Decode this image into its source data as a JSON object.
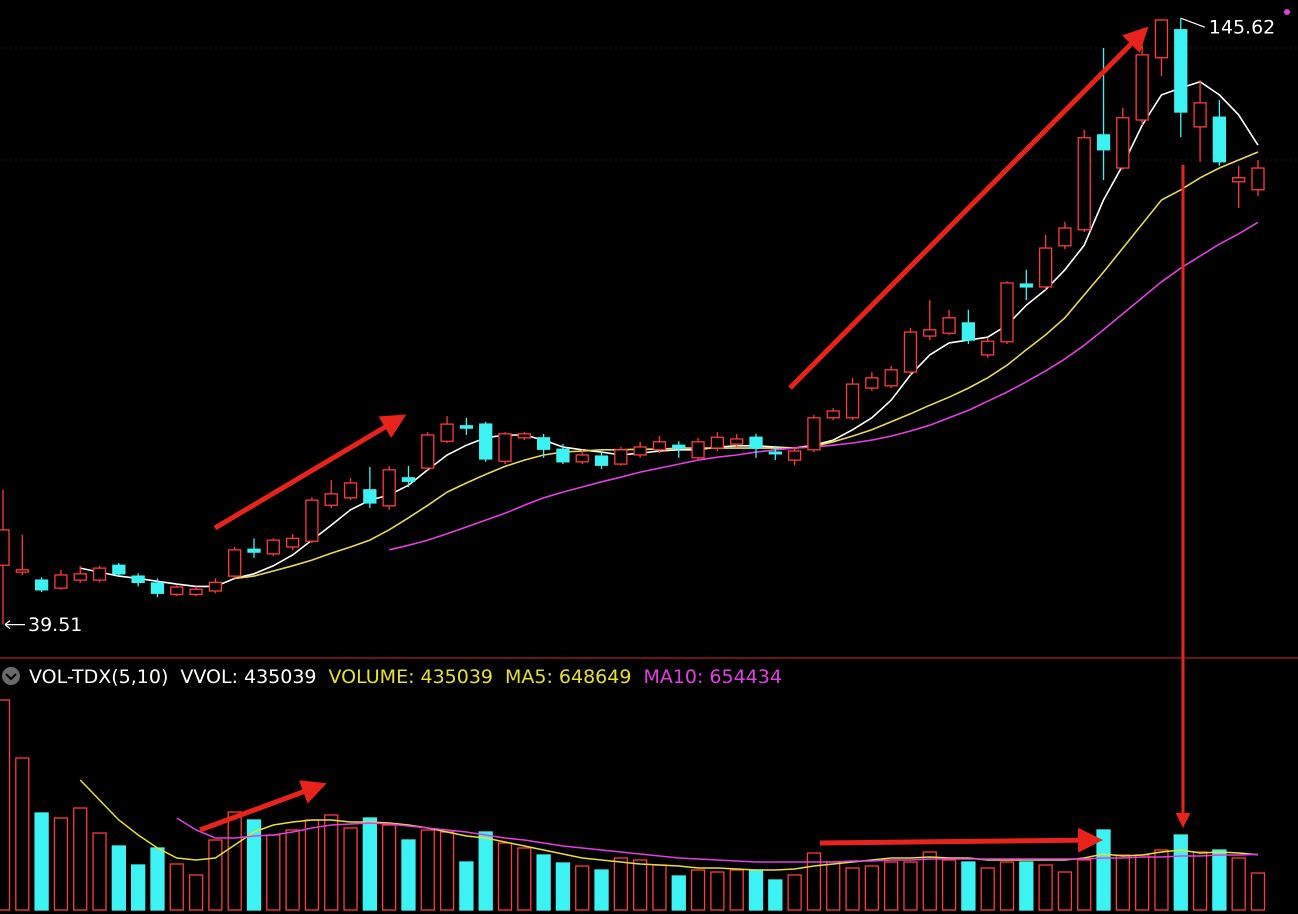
{
  "chart_data": [
    {
      "type": "candlestick",
      "open": [
        49.9,
        48.7,
        47.3,
        45.9,
        47.3,
        47.3,
        49.9,
        48.0,
        46.8,
        44.8,
        44.8,
        45.4,
        48.0,
        52.7,
        51.9,
        53.1,
        54.1,
        60.4,
        61.7,
        63.1,
        60.3,
        65.2,
        66.9,
        71.6,
        74.3,
        74.6,
        68.1,
        72.2,
        72.2,
        70.2,
        68.0,
        69.0,
        67.6,
        69.2,
        70.1,
        70.9,
        68.7,
        70.4,
        71.1,
        72.3,
        69.7,
        68.3,
        70.1,
        75.7,
        75.7,
        80.9,
        81.3,
        83.7,
        90.0,
        90.5,
        92.3,
        86.7,
        89.0,
        99.1,
        98.6,
        105.8,
        108.6,
        125.2,
        119.4,
        127.8,
        138.7,
        143.6,
        126.6,
        128.3,
        117.0,
        115.6
      ],
      "high": [
        63.1,
        55.2,
        47.8,
        49.1,
        49.8,
        49.8,
        50.3,
        48.5,
        47.6,
        46.4,
        46.2,
        47.6,
        53.1,
        54.6,
        54.6,
        55.4,
        61.8,
        64.8,
        65.2,
        67.1,
        67.3,
        67.3,
        73.2,
        76.0,
        75.7,
        75.0,
        73.2,
        73.2,
        72.9,
        71.1,
        70.1,
        69.7,
        70.6,
        71.5,
        72.5,
        71.6,
        72.2,
        73.2,
        72.9,
        72.9,
        70.8,
        70.6,
        76.2,
        77.4,
        82.7,
        83.7,
        84.8,
        91.4,
        96.3,
        94.6,
        94.6,
        89.7,
        99.6,
        101.6,
        107.7,
        110.0,
        126.1,
        140.4,
        129.9,
        140.9,
        145.5,
        145.62,
        134.8,
        131.3,
        119.8,
        120.8
      ],
      "low": [
        39.51,
        48.2,
        45.2,
        45.6,
        46.8,
        46.9,
        48.0,
        46.2,
        44.3,
        44.5,
        44.5,
        45.0,
        47.6,
        51.2,
        51.5,
        52.6,
        53.8,
        59.9,
        61.3,
        59.9,
        59.6,
        63.6,
        66.6,
        71.3,
        72.7,
        68.0,
        67.6,
        71.8,
        68.7,
        67.6,
        67.6,
        66.7,
        67.3,
        68.7,
        69.5,
        68.7,
        68.3,
        69.9,
        70.6,
        68.7,
        68.3,
        67.4,
        69.7,
        75.3,
        75.3,
        80.4,
        80.9,
        83.2,
        89.3,
        90.2,
        88.6,
        86.2,
        88.6,
        96.3,
        98.1,
        105.2,
        108.2,
        117.3,
        119.1,
        126.9,
        135.5,
        124.8,
        120.5,
        119.8,
        112.4,
        114.5
      ],
      "close": [
        56.1,
        49.1,
        45.6,
        48.2,
        48.4,
        49.4,
        48.4,
        46.9,
        45.0,
        46.1,
        45.7,
        46.9,
        52.6,
        52.2,
        54.3,
        54.6,
        61.3,
        62.4,
        64.3,
        60.8,
        66.6,
        64.6,
        72.7,
        74.6,
        73.9,
        68.5,
        72.9,
        72.9,
        70.2,
        68.0,
        69.2,
        67.4,
        70.1,
        70.6,
        71.5,
        70.4,
        71.5,
        72.3,
        72.0,
        70.4,
        69.4,
        69.9,
        75.7,
        76.9,
        81.6,
        82.7,
        84.1,
        90.7,
        91.1,
        93.2,
        89.3,
        89.1,
        99.3,
        98.6,
        105.4,
        108.9,
        124.7,
        122.6,
        128.2,
        139.2,
        145.3,
        129.2,
        130.8,
        120.5,
        117.7,
        119.4
      ],
      "up_color": "#ff3b3b",
      "down_color": "#3cf2f2",
      "ylim": [
        34.2,
        148.8
      ],
      "ma_lines": [
        {
          "color": "#ffffff",
          "values": [
            null,
            null,
            null,
            null,
            49.4,
            48.7,
            48.0,
            47.6,
            47.1,
            46.6,
            46.2,
            46.2,
            47.6,
            48.4,
            49.8,
            51.7,
            54.3,
            56.9,
            59.6,
            61.3,
            62.2,
            63.9,
            66.6,
            69.2,
            70.9,
            72.2,
            72.7,
            72.7,
            71.8,
            70.6,
            70.1,
            69.7,
            69.2,
            69.5,
            69.9,
            70.1,
            70.1,
            70.6,
            70.8,
            70.8,
            70.6,
            70.4,
            70.9,
            71.8,
            73.6,
            75.7,
            78.8,
            83.2,
            86.7,
            88.8,
            89.3,
            89.8,
            91.9,
            95.4,
            98.1,
            101.6,
            105.9,
            113.8,
            119.9,
            126.9,
            132.2,
            133.4,
            134.5,
            132.2,
            128.7,
            123.4
          ]
        },
        {
          "color": "#e8d85a",
          "values": [
            null,
            null,
            null,
            null,
            null,
            null,
            null,
            null,
            null,
            null,
            null,
            null,
            47.6,
            48.0,
            48.9,
            49.8,
            50.8,
            52.0,
            53.1,
            54.3,
            56.1,
            58.2,
            60.4,
            62.7,
            64.3,
            65.8,
            67.2,
            68.3,
            69.2,
            69.7,
            69.9,
            70.1,
            70.1,
            70.2,
            70.2,
            70.4,
            70.4,
            70.4,
            70.4,
            70.4,
            70.4,
            70.4,
            70.7,
            71.5,
            72.5,
            73.6,
            75.0,
            76.4,
            77.9,
            79.3,
            80.9,
            82.7,
            84.9,
            87.6,
            90.2,
            93.2,
            97.2,
            101.2,
            105.4,
            109.6,
            113.8,
            115.6,
            117.7,
            119.4,
            120.8,
            122.2
          ]
        },
        {
          "color": "#e040e0",
          "values": [
            null,
            null,
            null,
            null,
            null,
            null,
            null,
            null,
            null,
            null,
            null,
            null,
            null,
            null,
            null,
            null,
            null,
            null,
            null,
            null,
            52.6,
            53.4,
            54.3,
            55.4,
            56.6,
            57.8,
            59.0,
            60.4,
            61.7,
            62.7,
            63.6,
            64.5,
            65.3,
            66.2,
            66.9,
            67.6,
            68.3,
            68.8,
            69.2,
            69.7,
            70.1,
            70.4,
            70.6,
            70.9,
            71.3,
            71.8,
            72.5,
            73.4,
            74.4,
            75.7,
            77.0,
            78.6,
            80.2,
            82.0,
            83.9,
            86.0,
            88.4,
            91.1,
            93.9,
            96.7,
            99.5,
            101.9,
            104.0,
            106.1,
            107.9,
            109.9
          ]
        }
      ]
    },
    {
      "type": "bar",
      "title": "VOL-TDX(5,10)",
      "vvol": {
        "label": "VVOL:",
        "value": 435039,
        "color": "#ffffff"
      },
      "ylim": [
        0,
        2940000
      ],
      "series": [
        {
          "name": "VOLUME:",
          "color": "#e8e030",
          "values": [
            2469600,
            1787520,
            1140720,
            1081920,
            1199520,
            905520,
            752640,
            529200,
            729120,
            540960,
            411600,
            823200,
            1152480,
            1058400,
            882000,
            940800,
            1058400,
            1117200,
            964320,
            1081920,
            999600,
            823200,
            940800,
            917280,
            564480,
            917280,
            787920,
            729120,
            646800,
            552720,
            517440,
            470400,
            611520,
            588000,
            529200,
            399840,
            470400,
            446880,
            470400,
            470400,
            352800,
            411600,
            670320,
            564480,
            493920,
            517440,
            564480,
            564480,
            682080,
            588000,
            564480,
            493920,
            564480,
            564480,
            529200,
            446880,
            588000,
            940800,
            646800,
            646800,
            705600,
            882000,
            682080,
            705600,
            611520,
            435039
          ]
        },
        {
          "name": "MA5:",
          "color": "#e8e030",
          "values": [
            null,
            null,
            null,
            null,
            1528800,
            1293600,
            1058400,
            882000,
            729120,
            611520,
            588000,
            611520,
            764400,
            917280,
            999600,
            1034880,
            1058400,
            1058400,
            1034880,
            1034880,
            1023120,
            999600,
            964320,
            917280,
            870240,
            846720,
            799680,
            752640,
            705600,
            658560,
            611520,
            588000,
            564480,
            540960,
            529200,
            517440,
            493920,
            493920,
            482160,
            470400,
            470400,
            482160,
            517440,
            540960,
            564480,
            588000,
            611520,
            611520,
            623280,
            611520,
            611520,
            588000,
            588000,
            588000,
            588000,
            588000,
            611520,
            658560,
            635040,
            646800,
            682080,
            705600,
            670320,
            682080,
            670320,
            648649
          ]
        },
        {
          "name": "MA10:",
          "color": "#e040e0",
          "values": [
            null,
            null,
            null,
            null,
            null,
            null,
            null,
            null,
            null,
            1081920,
            940800,
            846720,
            846720,
            870240,
            882000,
            917280,
            964320,
            999600,
            1011360,
            1023120,
            1011360,
            987840,
            964320,
            940800,
            917280,
            882000,
            846720,
            823200,
            787920,
            752640,
            729120,
            705600,
            682080,
            658560,
            635040,
            611520,
            599760,
            588000,
            576240,
            564480,
            564480,
            564480,
            564480,
            564480,
            576240,
            576240,
            588000,
            588000,
            599760,
            599760,
            599760,
            599760,
            599760,
            599760,
            599760,
            599760,
            599760,
            611520,
            611520,
            623280,
            623280,
            635040,
            635040,
            646800,
            646800,
            654434
          ]
        }
      ]
    }
  ]
}
